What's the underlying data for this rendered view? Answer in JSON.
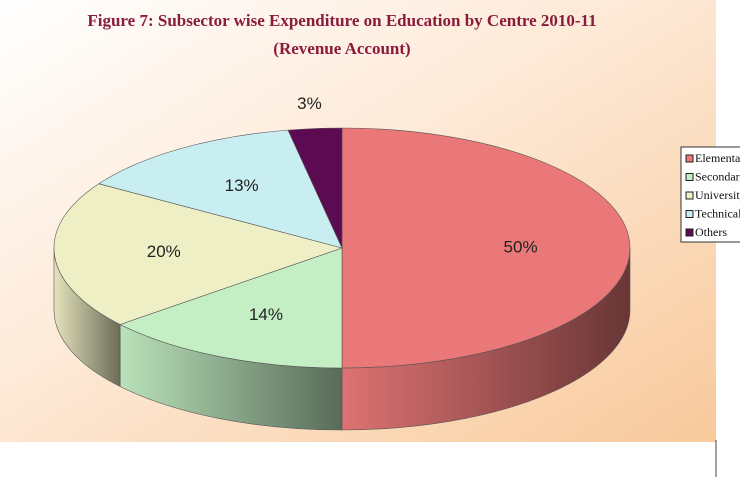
{
  "chart_data": {
    "type": "pie3d",
    "title": "Figure 7: Subsector wise Expenditure on Education by Centre 2010-11",
    "subtitle": "(Revenue Account)",
    "categories": [
      "Elementary",
      "Secondary",
      "University",
      "Technical",
      "Others"
    ],
    "values": [
      50,
      14,
      20,
      13,
      3
    ],
    "value_labels": [
      "50%",
      "14%",
      "20%",
      "13%",
      "3%"
    ],
    "colors": [
      "#ea7878",
      "#c4eec4",
      "#efefc6",
      "#c8eef2",
      "#5c0a52"
    ],
    "legend": "right"
  }
}
